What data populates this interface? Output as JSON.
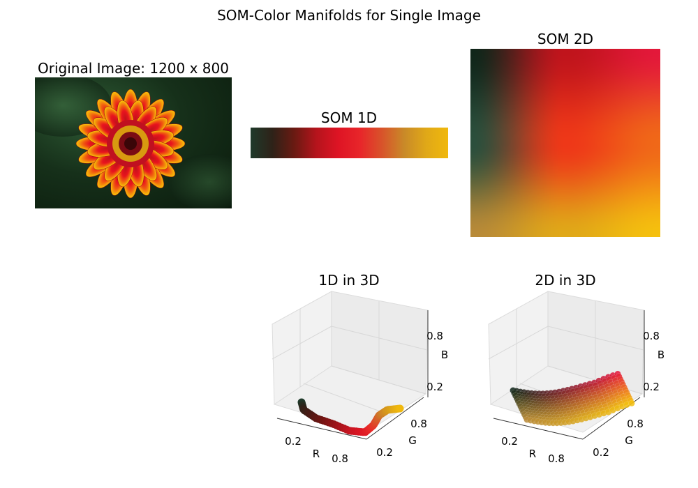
{
  "figure": {
    "title": "SOM-Color Manifolds for Single Image"
  },
  "panels": {
    "original": {
      "title": "Original Image: 1200 x 800",
      "image_width": 1200,
      "image_height": 800
    },
    "som1d": {
      "title": "SOM 1D",
      "gradient_stops": [
        "#1f3a2b",
        "#2e2218",
        "#6a1a12",
        "#b5141c",
        "#de1424",
        "#e8262a",
        "#d8542a",
        "#c98a28",
        "#e0a818",
        "#f0b80c"
      ]
    },
    "som2d": {
      "title": "SOM 2D",
      "corner_colors": {
        "top_left": "#10261a",
        "top_right": "#e3183a",
        "bottom_left": "#b88a38",
        "bottom_right": "#f5c00e"
      },
      "mid_colors": {
        "left": "#2b4f3c",
        "top": "#c0141c",
        "center": "#ee3818",
        "bottom": "#e0a818",
        "right": "#f06818"
      }
    },
    "plot3d_1d": {
      "title": "1D in 3D",
      "xlabel": "R",
      "ylabel": "G",
      "zlabel": "B",
      "xticks": [
        "0.2",
        "0.8"
      ],
      "yticks": [
        "0.2",
        "0.8"
      ],
      "zticks": [
        "0.2",
        "0.8"
      ]
    },
    "plot3d_2d": {
      "title": "2D in 3D",
      "xlabel": "R",
      "ylabel": "G",
      "zlabel": "B",
      "xticks": [
        "0.2",
        "0.8"
      ],
      "yticks": [
        "0.2",
        "0.8"
      ],
      "zticks": [
        "0.2",
        "0.8"
      ]
    }
  },
  "chart_data": [
    {
      "type": "scatter",
      "title": "1D in 3D",
      "xlabel": "R",
      "ylabel": "G",
      "zlabel": "B",
      "xlim": [
        0,
        1
      ],
      "ylim": [
        0,
        1
      ],
      "zlim": [
        0,
        1
      ],
      "grid": true,
      "points": [
        {
          "r": 0.12,
          "g": 0.23,
          "b": 0.17
        },
        {
          "r": 0.18,
          "g": 0.14,
          "b": 0.1
        },
        {
          "r": 0.3,
          "g": 0.1,
          "b": 0.08
        },
        {
          "r": 0.45,
          "g": 0.08,
          "b": 0.07
        },
        {
          "r": 0.62,
          "g": 0.08,
          "b": 0.1
        },
        {
          "r": 0.78,
          "g": 0.08,
          "b": 0.13
        },
        {
          "r": 0.87,
          "g": 0.09,
          "b": 0.14
        },
        {
          "r": 0.91,
          "g": 0.16,
          "b": 0.15
        },
        {
          "r": 0.86,
          "g": 0.32,
          "b": 0.16
        },
        {
          "r": 0.8,
          "g": 0.5,
          "b": 0.16
        },
        {
          "r": 0.85,
          "g": 0.62,
          "b": 0.1
        },
        {
          "r": 0.94,
          "g": 0.72,
          "b": 0.05
        }
      ]
    },
    {
      "type": "scatter",
      "title": "2D in 3D",
      "xlabel": "R",
      "ylabel": "G",
      "zlabel": "B",
      "xlim": [
        0,
        1
      ],
      "ylim": [
        0,
        1
      ],
      "zlim": [
        0,
        1
      ],
      "grid": true,
      "grid_corners": {
        "top_left": {
          "r": 0.06,
          "g": 0.15,
          "b": 0.1
        },
        "top_right": {
          "r": 0.89,
          "g": 0.09,
          "b": 0.23
        },
        "bottom_left": {
          "r": 0.72,
          "g": 0.54,
          "b": 0.22
        },
        "bottom_right": {
          "r": 0.96,
          "g": 0.75,
          "b": 0.05
        }
      }
    }
  ]
}
